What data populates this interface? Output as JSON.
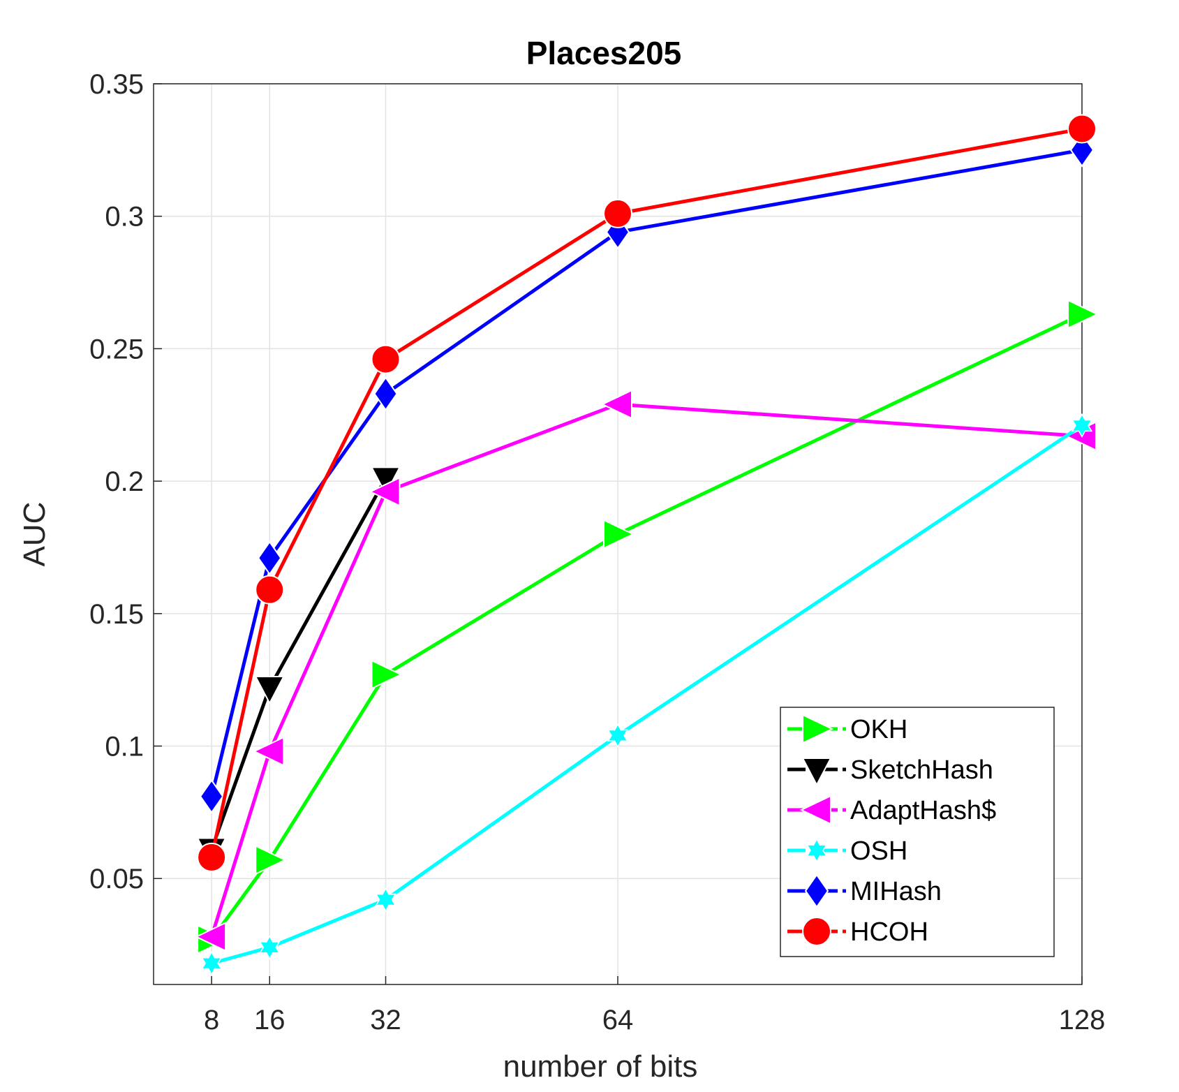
{
  "chart_data": {
    "type": "line",
    "title": "Places205",
    "xlabel": "number of bits",
    "ylabel": "AUC",
    "x": [
      8,
      16,
      32,
      64,
      128
    ],
    "xticks": [
      "8",
      "16",
      "32",
      "64",
      "128"
    ],
    "xlim": [
      0,
      128
    ],
    "ylim": [
      0.01,
      0.35
    ],
    "yticks": [
      "0.05",
      "0.1",
      "0.15",
      "0.2",
      "0.25",
      "0.3",
      "0.35"
    ],
    "ytick_values": [
      0.05,
      0.1,
      0.15,
      0.2,
      0.25,
      0.3,
      0.35
    ],
    "grid": true,
    "legend_position": "bottom-right",
    "series": [
      {
        "name": "OKH",
        "color": "#00ff00",
        "marker": "triangle-right",
        "linestyle": "dashdot",
        "values": [
          0.027,
          0.057,
          0.127,
          0.18,
          0.263
        ]
      },
      {
        "name": "SketchHash",
        "color": "#000000",
        "marker": "triangle-down",
        "linestyle": "dashdot",
        "values": [
          0.061,
          0.122,
          0.201,
          null,
          null
        ]
      },
      {
        "name": "AdaptHash$",
        "color": "#ff00ff",
        "marker": "triangle-left",
        "linestyle": "dashdot",
        "values": [
          0.028,
          0.098,
          0.196,
          0.229,
          0.217
        ]
      },
      {
        "name": "OSH",
        "color": "#00ffff",
        "marker": "hexagram",
        "linestyle": "dashdot",
        "values": [
          0.018,
          0.024,
          0.042,
          0.104,
          0.221
        ]
      },
      {
        "name": "MIHash",
        "color": "#0000ff",
        "marker": "diamond",
        "linestyle": "dashdot",
        "values": [
          0.081,
          0.171,
          0.233,
          0.294,
          0.325
        ]
      },
      {
        "name": "HCOH",
        "color": "#ff0000",
        "marker": "circle",
        "linestyle": "dashdot",
        "values": [
          0.058,
          0.159,
          0.246,
          0.301,
          0.333
        ]
      }
    ]
  }
}
